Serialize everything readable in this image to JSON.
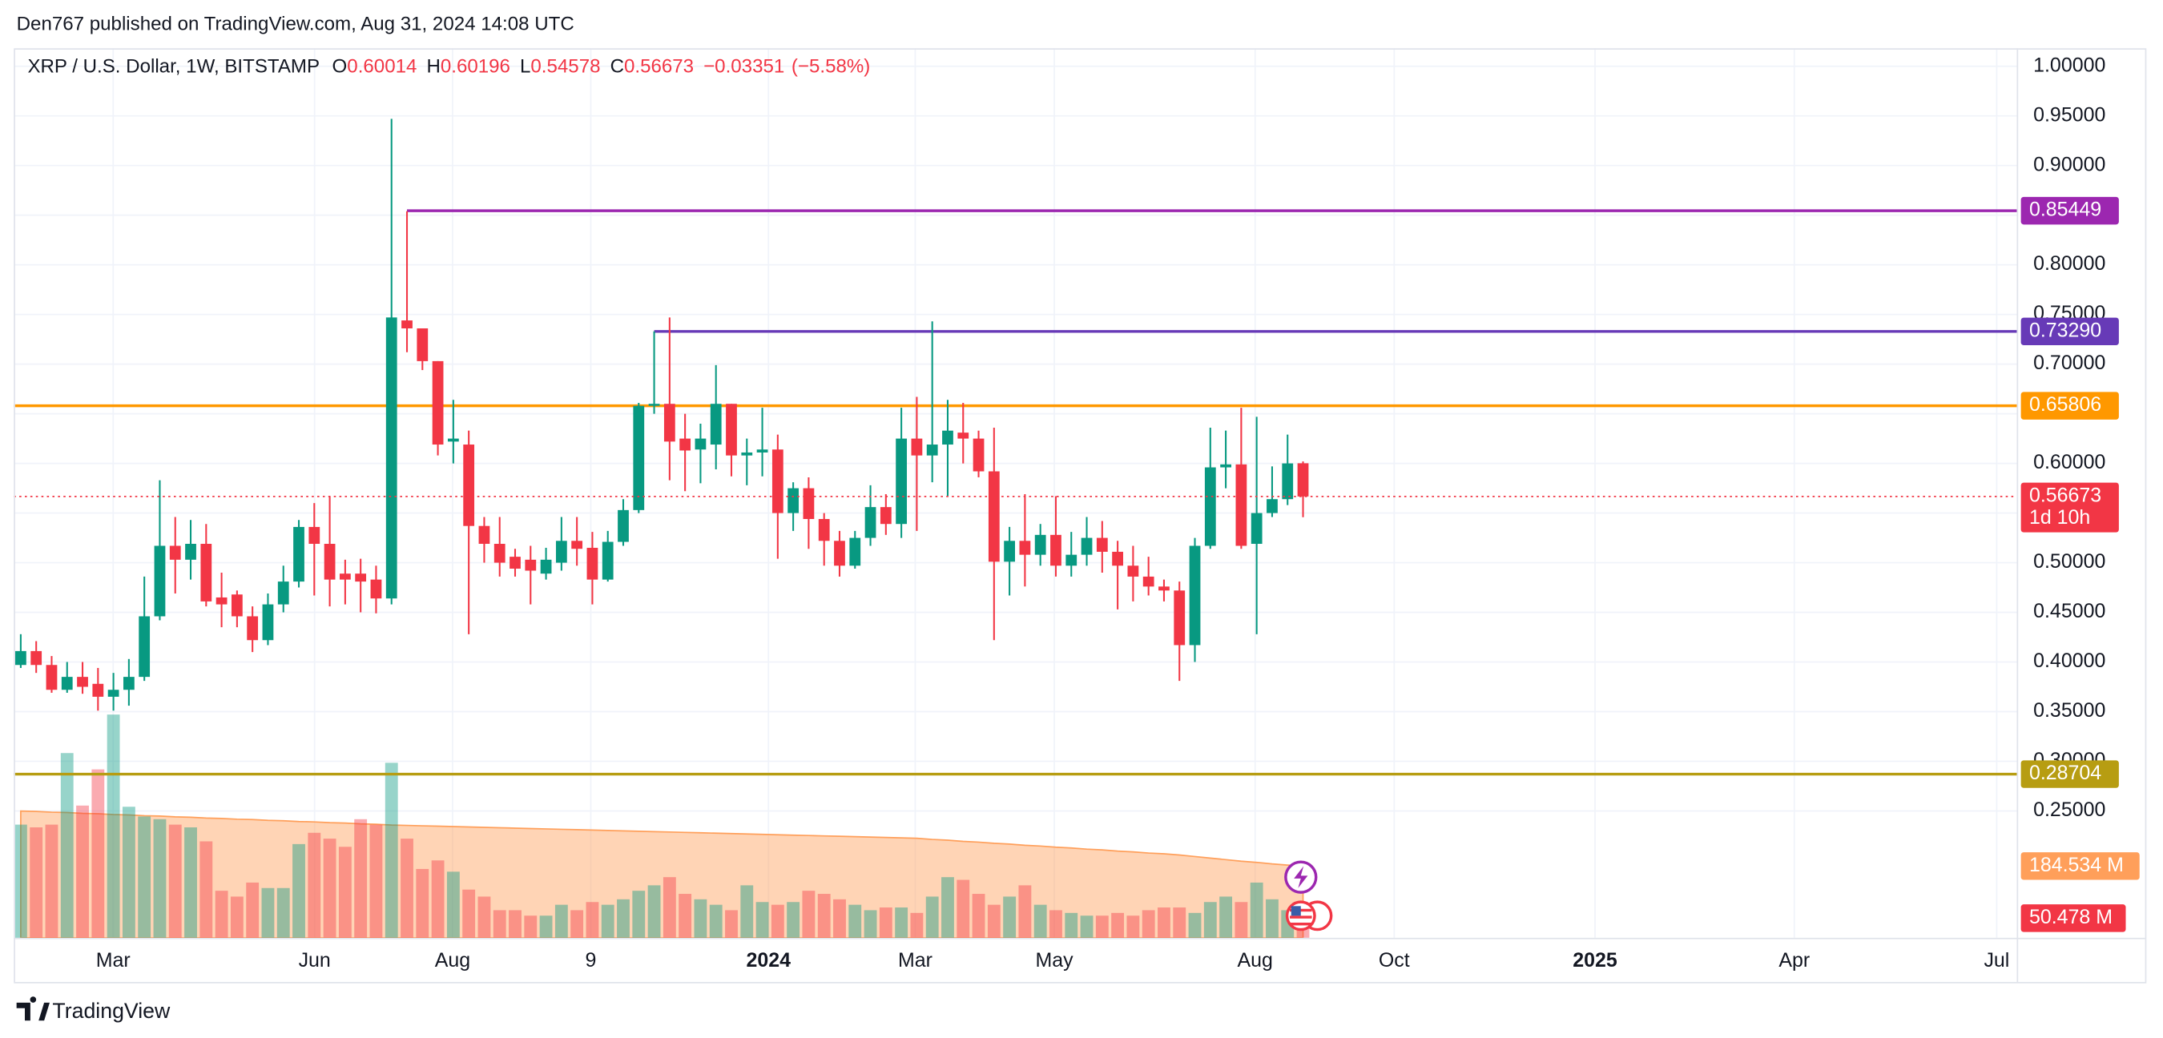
{
  "chart_data": {
    "type": "candlestick",
    "byline": "Den767 published on TradingView.com, Aug 31, 2024 14:08 UTC",
    "symbol": "XRP / U.S. Dollar, 1W, BITSTAMP",
    "legend_letters": [
      "O",
      "H",
      "L",
      "C"
    ],
    "change": {
      "value": -0.03351,
      "label": "−0.03351"
    },
    "change_percent": {
      "value": -5.58,
      "label": "(−5.58%)"
    },
    "countdown": "1d 10h",
    "brand": "TradingView",
    "up_color": "#089981",
    "down_color": "#f23645",
    "open": [
      0.397,
      0.411,
      0.397,
      0.372,
      0.385,
      0.378,
      0.365,
      0.372,
      0.385,
      0.446,
      0.517,
      0.503,
      0.519,
      0.465,
      0.468,
      0.446,
      0.422,
      0.458,
      0.481,
      0.536,
      0.519,
      0.489,
      0.489,
      0.483,
      0.464,
      0.744,
      0.736,
      0.703,
      0.622,
      0.619,
      0.537,
      0.519,
      0.506,
      0.503,
      0.489,
      0.5,
      0.522,
      0.515,
      0.483,
      0.521,
      0.553,
      0.658,
      0.66,
      0.625,
      0.614,
      0.619,
      0.66,
      0.608,
      0.611,
      0.614,
      0.55,
      0.575,
      0.544,
      0.522,
      0.497,
      0.525,
      0.556,
      0.539,
      0.625,
      0.608,
      0.619,
      0.631,
      0.625,
      0.592,
      0.501,
      0.522,
      0.508,
      0.528,
      0.497,
      0.508,
      0.525,
      0.511,
      0.497,
      0.486,
      0.476,
      0.472,
      0.417,
      0.517,
      0.596,
      0.599,
      0.519,
      0.55,
      0.564,
      0.60014
    ],
    "high": [
      0.428,
      0.421,
      0.406,
      0.4,
      0.4,
      0.394,
      0.389,
      0.403,
      0.486,
      0.583,
      0.546,
      0.543,
      0.539,
      0.49,
      0.472,
      0.456,
      0.469,
      0.497,
      0.543,
      0.56,
      0.567,
      0.503,
      0.504,
      0.497,
      0.947,
      0.854,
      0.736,
      0.703,
      0.664,
      0.633,
      0.546,
      0.546,
      0.514,
      0.517,
      0.515,
      0.546,
      0.546,
      0.531,
      0.532,
      0.564,
      0.661,
      0.733,
      0.747,
      0.65,
      0.64,
      0.699,
      0.66,
      0.625,
      0.656,
      0.629,
      0.581,
      0.586,
      0.55,
      0.532,
      0.532,
      0.578,
      0.569,
      0.656,
      0.667,
      0.743,
      0.664,
      0.661,
      0.633,
      0.636,
      0.536,
      0.569,
      0.539,
      0.567,
      0.531,
      0.546,
      0.542,
      0.522,
      0.517,
      0.506,
      0.483,
      0.481,
      0.525,
      0.636,
      0.633,
      0.656,
      0.647,
      0.597,
      0.629,
      0.60196
    ],
    "low": [
      0.394,
      0.389,
      0.369,
      0.369,
      0.368,
      0.351,
      0.351,
      0.356,
      0.381,
      0.442,
      0.469,
      0.483,
      0.456,
      0.435,
      0.435,
      0.41,
      0.417,
      0.45,
      0.475,
      0.467,
      0.456,
      0.458,
      0.45,
      0.449,
      0.458,
      0.712,
      0.694,
      0.608,
      0.6,
      0.428,
      0.5,
      0.486,
      0.486,
      0.458,
      0.483,
      0.492,
      0.497,
      0.458,
      0.481,
      0.517,
      0.55,
      0.65,
      0.583,
      0.572,
      0.58,
      0.594,
      0.587,
      0.578,
      0.587,
      0.504,
      0.532,
      0.514,
      0.497,
      0.486,
      0.494,
      0.517,
      0.528,
      0.525,
      0.532,
      0.581,
      0.567,
      0.6,
      0.586,
      0.422,
      0.467,
      0.476,
      0.497,
      0.486,
      0.486,
      0.497,
      0.49,
      0.453,
      0.461,
      0.467,
      0.461,
      0.381,
      0.4,
      0.514,
      0.575,
      0.514,
      0.428,
      0.546,
      0.558,
      0.54578
    ],
    "close": [
      0.411,
      0.397,
      0.372,
      0.385,
      0.375,
      0.365,
      0.372,
      0.385,
      0.446,
      0.517,
      0.503,
      0.519,
      0.461,
      0.458,
      0.446,
      0.422,
      0.458,
      0.481,
      0.536,
      0.519,
      0.483,
      0.483,
      0.481,
      0.464,
      0.747,
      0.736,
      0.703,
      0.619,
      0.625,
      0.537,
      0.519,
      0.5,
      0.494,
      0.492,
      0.503,
      0.522,
      0.514,
      0.483,
      0.521,
      0.553,
      0.658,
      0.66,
      0.622,
      0.613,
      0.625,
      0.66,
      0.608,
      0.611,
      0.614,
      0.55,
      0.575,
      0.544,
      0.522,
      0.497,
      0.525,
      0.556,
      0.539,
      0.625,
      0.608,
      0.619,
      0.633,
      0.625,
      0.592,
      0.501,
      0.522,
      0.508,
      0.528,
      0.497,
      0.508,
      0.525,
      0.511,
      0.497,
      0.486,
      0.476,
      0.472,
      0.417,
      0.517,
      0.596,
      0.599,
      0.517,
      0.55,
      0.564,
      0.6,
      0.56673
    ],
    "volume": [
      291,
      284,
      291,
      475,
      340,
      433,
      574,
      337,
      312,
      305,
      291,
      284,
      248,
      121,
      106,
      142,
      128,
      128,
      241,
      270,
      255,
      234,
      305,
      291,
      450,
      255,
      177,
      199,
      170,
      124,
      106,
      71,
      71,
      57,
      57,
      85,
      71,
      92,
      85,
      99,
      121,
      135,
      156,
      113,
      99,
      85,
      71,
      135,
      92,
      85,
      92,
      121,
      113,
      99,
      85,
      71,
      78,
      78,
      64,
      106,
      156,
      149,
      113,
      85,
      106,
      135,
      85,
      71,
      64,
      57,
      57,
      64,
      57,
      71,
      78,
      78,
      64,
      92,
      106,
      92,
      142,
      99,
      71,
      50.478
    ],
    "volume_ma": [
      326,
      325,
      323,
      322,
      320,
      319,
      317,
      316,
      314,
      313,
      311,
      310,
      308,
      307,
      305,
      304,
      302,
      301,
      299,
      298,
      296,
      295,
      293,
      292,
      290,
      289,
      288,
      287,
      286,
      285,
      284,
      283,
      282,
      281,
      280,
      279,
      278,
      277,
      276,
      275,
      274,
      273,
      272,
      271,
      270,
      269,
      268,
      267,
      266,
      265,
      264,
      263,
      262,
      261,
      260,
      259,
      258,
      257,
      256,
      253,
      251,
      248,
      246,
      243,
      241,
      238,
      236,
      233,
      231,
      228,
      226,
      223,
      221,
      218,
      216,
      213,
      209,
      205,
      201,
      197,
      194,
      190,
      187,
      184.534
    ],
    "volume_last_label": "50.478 M",
    "volume_ma_last_label": "184.534 M",
    "volume_ma_color": "#ff9f5a",
    "volume_lim": [
      0,
      2287
    ],
    "levels": [
      {
        "value": 0.85449,
        "color": "#9c27b0",
        "from_bar": 25
      },
      {
        "value": 0.7329,
        "label": "0.73290",
        "color": "#673ab7",
        "from_bar": 41
      },
      {
        "value": 0.65806,
        "color": "#ff9800",
        "text_color": "#131722"
      },
      {
        "value": 0.28704,
        "color": "#b79d12",
        "text_color": "#131722"
      }
    ],
    "ylim": [
      0.1222,
      1.0181
    ],
    "yticks": [
      {
        "value": 0.25,
        "label": "0.25000"
      },
      {
        "value": 0.3,
        "label": "0.30000"
      },
      {
        "value": 0.35,
        "label": "0.35000"
      },
      {
        "value": 0.4,
        "label": "0.40000"
      },
      {
        "value": 0.45,
        "label": "0.45000"
      },
      {
        "value": 0.5,
        "label": "0.50000"
      },
      {
        "value": 0.55,
        "label": "0.55000"
      },
      {
        "value": 0.6,
        "label": "0.60000"
      },
      {
        "value": 0.65,
        "label": "0.65000"
      },
      {
        "value": 0.7,
        "label": "0.70000"
      },
      {
        "value": 0.75,
        "label": "0.75000"
      },
      {
        "value": 0.8,
        "label": "0.80000"
      },
      {
        "value": 0.85,
        "label": "0.85000"
      },
      {
        "value": 0.9,
        "label": "0.90000"
      },
      {
        "value": 0.95,
        "label": "0.95000"
      },
      {
        "value": 1,
        "label": "1.00000"
      }
    ],
    "xlim": [
      -0.45,
      129.2
    ],
    "xticks": [
      {
        "value": 5.98,
        "label": "Mar"
      },
      {
        "value": 19.02,
        "label": "Jun"
      },
      {
        "value": 27.95,
        "label": "Aug"
      },
      {
        "value": 36.9,
        "label": "9"
      },
      {
        "value": 48.4,
        "label": "2024"
      },
      {
        "value": 57.9,
        "label": "Mar"
      },
      {
        "value": 66.9,
        "label": "May"
      },
      {
        "value": 79.9,
        "label": "Aug"
      },
      {
        "value": 88.9,
        "label": "Oct"
      },
      {
        "value": 101.9,
        "label": "2025"
      },
      {
        "value": 114.8,
        "label": "Apr"
      },
      {
        "value": 127.9,
        "label": "Jul"
      }
    ],
    "grid": true
  }
}
